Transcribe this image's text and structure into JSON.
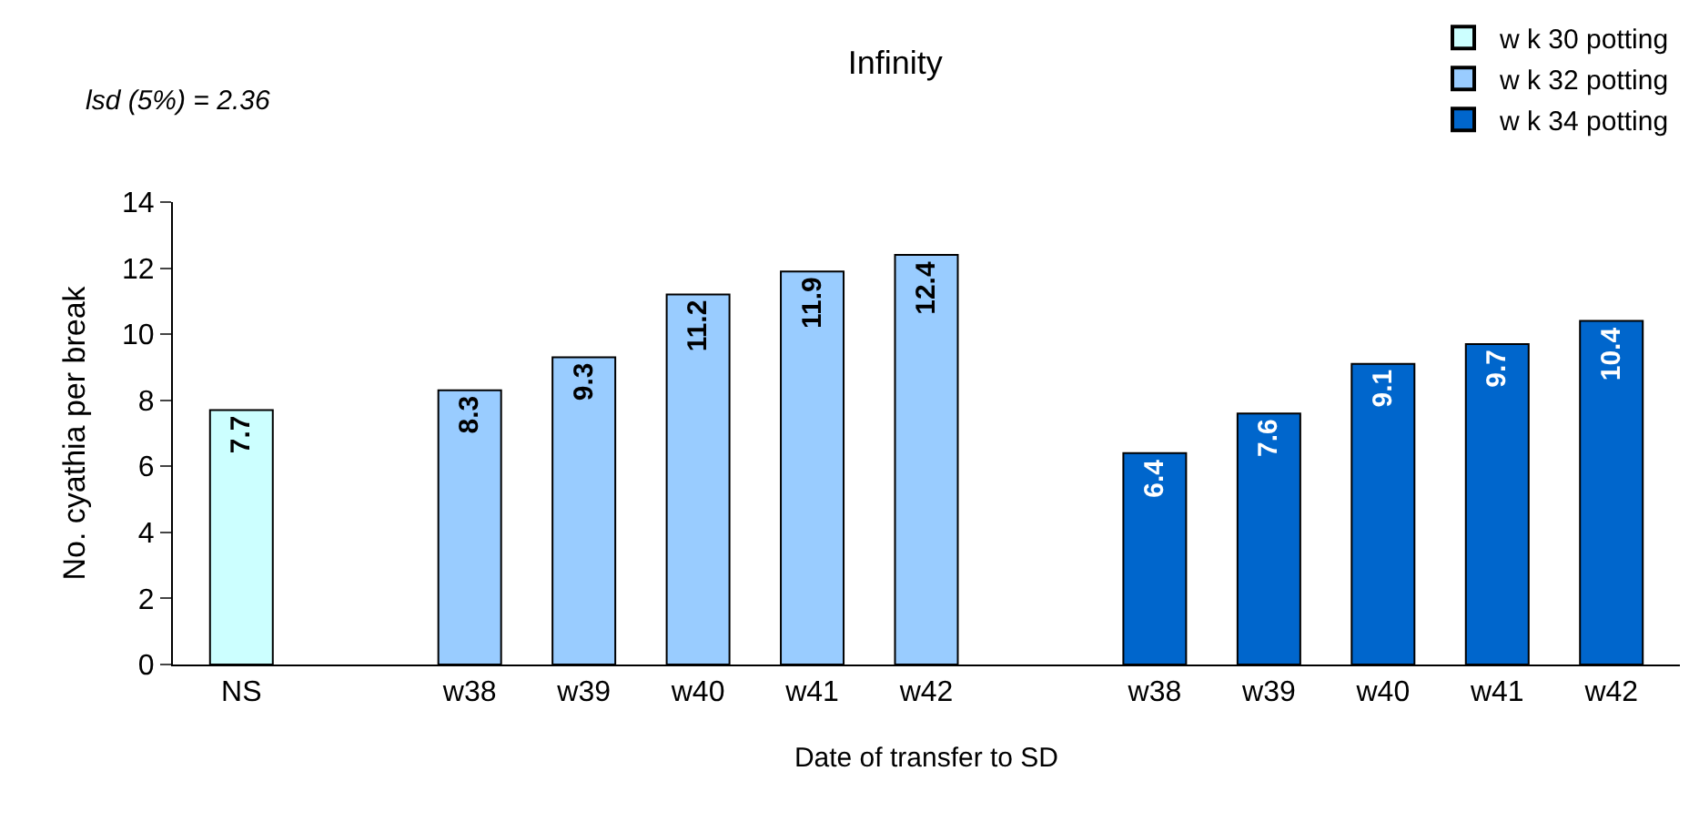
{
  "chart_data": {
    "type": "bar",
    "title": "Infinity",
    "xlabel": "Date of transfer to SD",
    "ylabel": "No. cyathia per break",
    "annotations": [
      "lsd (5%) = 2.36"
    ],
    "categories": [
      "NS",
      null,
      "w38",
      "w39",
      "w40",
      "w41",
      "w42",
      null,
      "w38",
      "w39",
      "w40",
      "w41",
      "w42"
    ],
    "series": [
      {
        "name": "w k 30 potting",
        "color": "#ccffff",
        "values": [
          7.7,
          null,
          null,
          null,
          null,
          null,
          null,
          null,
          null,
          null,
          null,
          null,
          null
        ]
      },
      {
        "name": "w k 32 potting",
        "color": "#99ccff",
        "values": [
          null,
          null,
          8.3,
          9.3,
          11.2,
          11.9,
          12.4,
          null,
          null,
          null,
          null,
          null,
          null
        ]
      },
      {
        "name": "w k 34 potting",
        "color": "#0066cc",
        "values": [
          null,
          null,
          null,
          null,
          null,
          null,
          null,
          null,
          6.4,
          7.6,
          9.1,
          9.7,
          10.4
        ]
      }
    ],
    "ylim": [
      0,
      14
    ],
    "yticks": [
      0,
      2,
      4,
      6,
      8,
      10,
      12,
      14
    ],
    "legend": "top right",
    "data_labels": true
  }
}
